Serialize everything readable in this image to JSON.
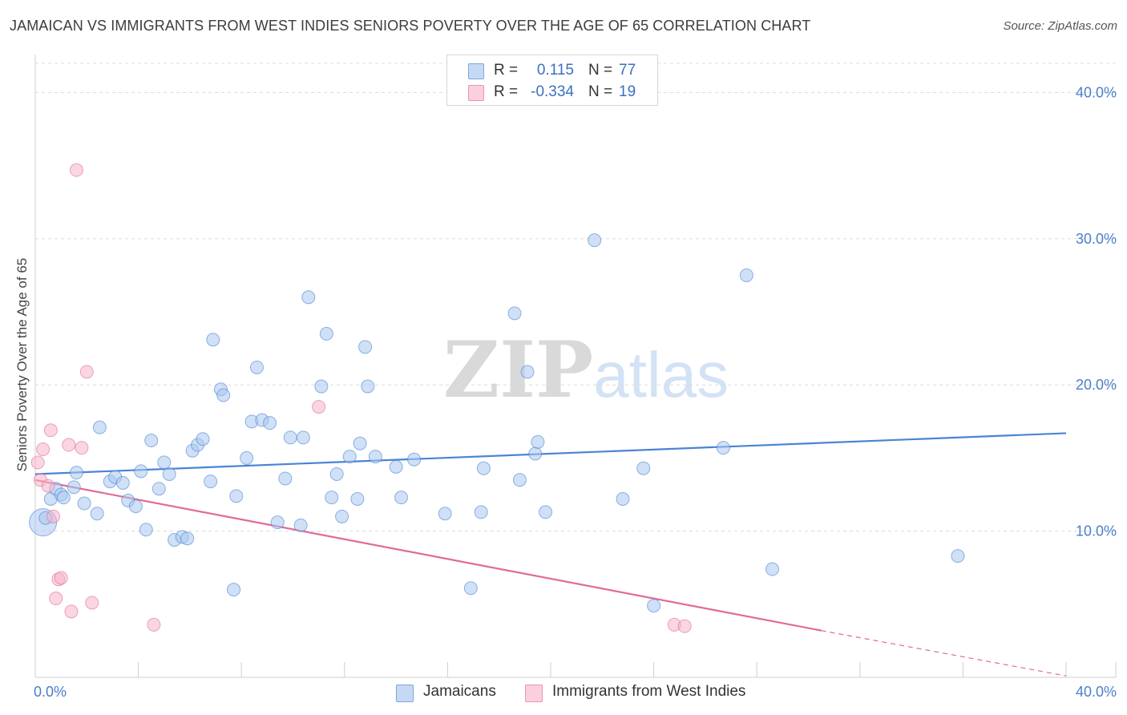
{
  "header": {
    "title": "JAMAICAN VS IMMIGRANTS FROM WEST INDIES SENIORS POVERTY OVER THE AGE OF 65 CORRELATION CHART",
    "source": "Source: ZipAtlas.com"
  },
  "watermark": {
    "zip": "ZIP",
    "atlas": "atlas"
  },
  "legend": {
    "rows": [
      {
        "r_label": "R =",
        "r_value": "0.115",
        "n_label": "N =",
        "n_value": "77",
        "color": "#a9c6ee"
      },
      {
        "r_label": "R =",
        "r_value": "-0.334",
        "n_label": "N =",
        "n_value": "19",
        "color": "#f5b4c9"
      }
    ]
  },
  "bottom_legend": {
    "items": [
      {
        "label": "Jamaicans",
        "color": "#a9c6ee"
      },
      {
        "label": "Immigrants from West Indies",
        "color": "#f5b4c9"
      }
    ]
  },
  "chart_data": {
    "type": "scatter",
    "title": "JAMAICAN VS IMMIGRANTS FROM WEST INDIES SENIORS POVERTY OVER THE AGE OF 65 CORRELATION CHART",
    "xlabel": "",
    "ylabel": "Seniors Poverty Over the Age of 65",
    "xlim": [
      0,
      40
    ],
    "ylim": [
      0,
      42
    ],
    "x_tick_labels": [
      "0.0%",
      "40.0%"
    ],
    "y_ticks": [
      10,
      20,
      30,
      40
    ],
    "y_tick_labels": [
      "10.0%",
      "20.0%",
      "30.0%",
      "40.0%"
    ],
    "grid": true,
    "legend_placement": "top-center",
    "series": [
      {
        "name": "Jamaicans",
        "color": "#4a84d4",
        "fill": "#a9c6ee",
        "trend": {
          "x": [
            0,
            40
          ],
          "y": [
            13.9,
            16.7
          ]
        },
        "points": [
          [
            0.3,
            10.6
          ],
          [
            0.4,
            10.9
          ],
          [
            0.6,
            12.2
          ],
          [
            0.8,
            12.9
          ],
          [
            1.0,
            12.5
          ],
          [
            1.1,
            12.3
          ],
          [
            1.5,
            13.0
          ],
          [
            1.6,
            14.0
          ],
          [
            1.9,
            11.9
          ],
          [
            2.4,
            11.2
          ],
          [
            2.5,
            17.1
          ],
          [
            2.9,
            13.4
          ],
          [
            3.1,
            13.7
          ],
          [
            3.4,
            13.3
          ],
          [
            3.6,
            12.1
          ],
          [
            3.9,
            11.7
          ],
          [
            4.1,
            14.1
          ],
          [
            4.3,
            10.1
          ],
          [
            4.5,
            16.2
          ],
          [
            4.8,
            12.9
          ],
          [
            5.0,
            14.7
          ],
          [
            5.2,
            13.9
          ],
          [
            5.4,
            9.4
          ],
          [
            5.7,
            9.6
          ],
          [
            5.9,
            9.5
          ],
          [
            6.1,
            15.5
          ],
          [
            6.3,
            15.9
          ],
          [
            6.5,
            16.3
          ],
          [
            6.8,
            13.4
          ],
          [
            6.9,
            23.1
          ],
          [
            7.2,
            19.7
          ],
          [
            7.3,
            19.3
          ],
          [
            7.7,
            6.0
          ],
          [
            7.8,
            12.4
          ],
          [
            8.2,
            15.0
          ],
          [
            8.4,
            17.5
          ],
          [
            8.6,
            21.2
          ],
          [
            8.8,
            17.6
          ],
          [
            9.1,
            17.4
          ],
          [
            9.4,
            10.6
          ],
          [
            9.7,
            13.6
          ],
          [
            9.9,
            16.4
          ],
          [
            10.3,
            10.4
          ],
          [
            10.4,
            16.4
          ],
          [
            10.6,
            26.0
          ],
          [
            11.1,
            19.9
          ],
          [
            11.3,
            23.5
          ],
          [
            11.5,
            12.3
          ],
          [
            11.7,
            13.9
          ],
          [
            11.9,
            11.0
          ],
          [
            12.2,
            15.1
          ],
          [
            12.5,
            12.2
          ],
          [
            12.6,
            16.0
          ],
          [
            12.8,
            22.6
          ],
          [
            12.9,
            19.9
          ],
          [
            13.2,
            15.1
          ],
          [
            14.0,
            14.4
          ],
          [
            14.2,
            12.3
          ],
          [
            14.7,
            14.9
          ],
          [
            15.9,
            11.2
          ],
          [
            16.9,
            6.1
          ],
          [
            17.3,
            11.3
          ],
          [
            17.4,
            14.3
          ],
          [
            18.6,
            24.9
          ],
          [
            18.8,
            13.5
          ],
          [
            19.1,
            20.9
          ],
          [
            19.4,
            15.3
          ],
          [
            19.5,
            16.1
          ],
          [
            19.8,
            11.3
          ],
          [
            21.7,
            29.9
          ],
          [
            22.8,
            12.2
          ],
          [
            23.6,
            14.3
          ],
          [
            24.0,
            4.9
          ],
          [
            26.7,
            15.7
          ],
          [
            27.6,
            27.5
          ],
          [
            28.6,
            7.4
          ],
          [
            35.8,
            8.3
          ]
        ]
      },
      {
        "name": "Immigrants from West Indies",
        "color": "#e06a98",
        "fill": "#f5b4c9",
        "trend": {
          "x": [
            0,
            30.5
          ],
          "y": [
            13.5,
            3.2
          ]
        },
        "trend_dashed": {
          "x": [
            30.5,
            40
          ],
          "y": [
            3.2,
            0.1
          ]
        },
        "points": [
          [
            0.1,
            14.7
          ],
          [
            0.2,
            13.5
          ],
          [
            0.3,
            15.6
          ],
          [
            0.5,
            13.1
          ],
          [
            0.6,
            16.9
          ],
          [
            0.7,
            11.0
          ],
          [
            0.8,
            5.4
          ],
          [
            0.9,
            6.7
          ],
          [
            1.0,
            6.8
          ],
          [
            1.3,
            15.9
          ],
          [
            1.4,
            4.5
          ],
          [
            1.6,
            34.7
          ],
          [
            1.8,
            15.7
          ],
          [
            2.0,
            20.9
          ],
          [
            2.2,
            5.1
          ],
          [
            4.6,
            3.6
          ],
          [
            11.0,
            18.5
          ],
          [
            24.8,
            3.6
          ],
          [
            25.2,
            3.5
          ]
        ]
      }
    ]
  }
}
